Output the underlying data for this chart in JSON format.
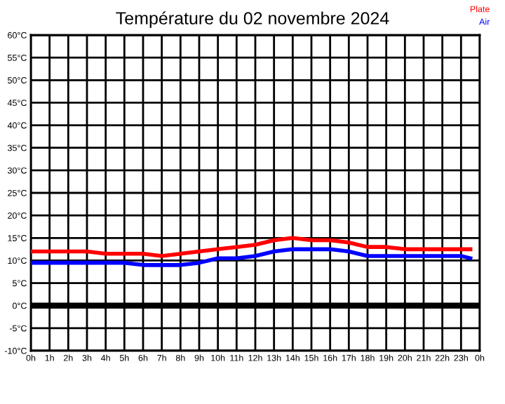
{
  "chart_data": {
    "type": "line",
    "title": "Température du 02 novembre 2024",
    "x": [
      "2024-11-02T00:00",
      "2024-11-02T01:00",
      "2024-11-02T02:00",
      "2024-11-02T03:00",
      "2024-11-02T04:00",
      "2024-11-02T05:00",
      "2024-11-02T06:00",
      "2024-11-02T07:00",
      "2024-11-02T08:00",
      "2024-11-02T09:00",
      "2024-11-02T10:00",
      "2024-11-02T11:00",
      "2024-11-02T12:00",
      "2024-11-02T13:00",
      "2024-11-02T14:00",
      "2024-11-02T15:00",
      "2024-11-02T16:00",
      "2024-11-02T17:00",
      "2024-11-02T18:00",
      "2024-11-02T19:00",
      "2024-11-02T20:00",
      "2024-11-02T21:00",
      "2024-11-02T22:00",
      "2024-11-02T23:00",
      "2024-11-02T23:30"
    ],
    "series": [
      {
        "name": "Plate",
        "color": "#ff0000",
        "values": [
          12,
          12,
          12,
          12,
          11.5,
          11.5,
          11.5,
          11,
          11.5,
          12,
          12.5,
          13,
          13.5,
          14.5,
          15,
          14.5,
          14.5,
          14,
          13,
          13,
          12.5,
          12.5,
          12.5,
          12.5,
          12.5
        ]
      },
      {
        "name": "Air",
        "color": "#0000ff",
        "values": [
          9.5,
          9.5,
          9.5,
          9.5,
          9.5,
          9.5,
          9,
          9,
          9,
          9.5,
          10.5,
          10.5,
          11,
          12,
          12.5,
          12.5,
          12.5,
          12,
          11,
          11,
          11,
          11,
          11,
          11,
          10.5
        ]
      }
    ],
    "xlim": [
      "2024-11-02T00:00",
      "2024-11-03T00:00"
    ],
    "xticks": [
      {
        "value": "2024-11-02T00:00",
        "label": "0h"
      },
      {
        "value": "2024-11-02T01:00",
        "label": "1h"
      },
      {
        "value": "2024-11-02T02:00",
        "label": "2h"
      },
      {
        "value": "2024-11-02T03:00",
        "label": "3h"
      },
      {
        "value": "2024-11-02T04:00",
        "label": "4h"
      },
      {
        "value": "2024-11-02T05:00",
        "label": "5h"
      },
      {
        "value": "2024-11-02T06:00",
        "label": "6h"
      },
      {
        "value": "2024-11-02T07:00",
        "label": "7h"
      },
      {
        "value": "2024-11-02T08:00",
        "label": "8h"
      },
      {
        "value": "2024-11-02T09:00",
        "label": "9h"
      },
      {
        "value": "2024-11-02T10:00",
        "label": "10h"
      },
      {
        "value": "2024-11-02T11:00",
        "label": "11h"
      },
      {
        "value": "2024-11-02T12:00",
        "label": "12h"
      },
      {
        "value": "2024-11-02T13:00",
        "label": "13h"
      },
      {
        "value": "2024-11-02T14:00",
        "label": "14h"
      },
      {
        "value": "2024-11-02T15:00",
        "label": "15h"
      },
      {
        "value": "2024-11-02T16:00",
        "label": "16h"
      },
      {
        "value": "2024-11-02T17:00",
        "label": "17h"
      },
      {
        "value": "2024-11-02T18:00",
        "label": "18h"
      },
      {
        "value": "2024-11-02T19:00",
        "label": "19h"
      },
      {
        "value": "2024-11-02T20:00",
        "label": "20h"
      },
      {
        "value": "2024-11-02T21:00",
        "label": "21h"
      },
      {
        "value": "2024-11-02T22:00",
        "label": "22h"
      },
      {
        "value": "2024-11-02T23:00",
        "label": "23h"
      },
      {
        "value": "2024-11-03T00:00",
        "label": "0h"
      }
    ],
    "ylim": [
      -10,
      60
    ],
    "yticks": [
      {
        "value": -10,
        "label": "-10°C"
      },
      {
        "value": -5,
        "label": "-5°C"
      },
      {
        "value": 0,
        "label": "0°C"
      },
      {
        "value": 5,
        "label": "5°C"
      },
      {
        "value": 10,
        "label": "10°C"
      },
      {
        "value": 15,
        "label": "15°C"
      },
      {
        "value": 20,
        "label": "20°C"
      },
      {
        "value": 25,
        "label": "25°C"
      },
      {
        "value": 30,
        "label": "30°C"
      },
      {
        "value": 35,
        "label": "35°C"
      },
      {
        "value": 40,
        "label": "40°C"
      },
      {
        "value": 45,
        "label": "45°C"
      },
      {
        "value": 50,
        "label": "50°C"
      },
      {
        "value": 55,
        "label": "55°C"
      },
      {
        "value": 60,
        "label": "60°C"
      }
    ],
    "ref_lines": [
      {
        "axis": "y",
        "value": 0,
        "color": "#000000"
      }
    ],
    "grid": true,
    "legend": "top right",
    "marker": "none",
    "line_style": "solid"
  }
}
